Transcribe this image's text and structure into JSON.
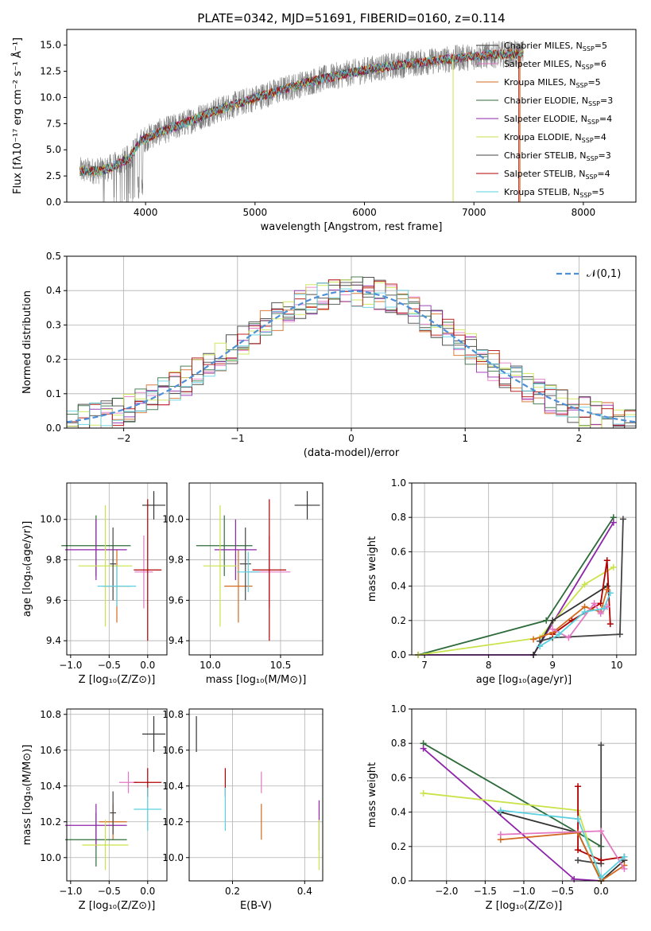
{
  "title": "PLATE=0342, MJD=51691, FIBERID=0160, z=0.114",
  "models": [
    {
      "name": "Chabrier MILES",
      "nssp": "5",
      "color": "#333333"
    },
    {
      "name": "Salpeter MILES",
      "nssp": "6",
      "color": "#e377c2"
    },
    {
      "name": "Kroupa MILES",
      "nssp": "5",
      "color": "#d2691e"
    },
    {
      "name": "Chabrier ELODIE",
      "nssp": "3",
      "color": "#2e6b3a"
    },
    {
      "name": "Salpeter ELODIE",
      "nssp": "4",
      "color": "#8e24aa"
    },
    {
      "name": "Kroupa ELODIE",
      "nssp": "4",
      "color": "#c9e34a"
    },
    {
      "name": "Chabrier STELIB",
      "nssp": "3",
      "color": "#444444"
    },
    {
      "name": "Salpeter STELIB",
      "nssp": "4",
      "color": "#b00000"
    },
    {
      "name": "Kroupa STELIB",
      "nssp": "5",
      "color": "#5ad0e0"
    }
  ],
  "chart_data": [
    {
      "id": "spectrum",
      "type": "line",
      "title": "PLATE=0342, MJD=51691, FIBERID=0160, z=0.114",
      "xlabel": "wavelength [Angstrom, rest frame]",
      "ylabel": "Flux [fλ10⁻¹⁷ erg cm⁻² s⁻¹ Å⁻¹]",
      "xlim": [
        3280,
        8480
      ],
      "ylim": [
        0,
        16.5
      ],
      "xticks": [
        4000,
        5000,
        6000,
        7000,
        8000
      ],
      "yticks": [
        0.0,
        2.5,
        5.0,
        7.5,
        10.0,
        12.5,
        15.0
      ],
      "data_range": [
        3400,
        7450
      ],
      "continuum": [
        [
          3400,
          3.0
        ],
        [
          3600,
          3.0
        ],
        [
          3700,
          3.4
        ],
        [
          3850,
          4.2
        ],
        [
          3950,
          5.8
        ],
        [
          4100,
          6.6
        ],
        [
          4300,
          7.3
        ],
        [
          4600,
          8.6
        ],
        [
          4900,
          9.6
        ],
        [
          5200,
          10.6
        ],
        [
          5500,
          11.5
        ],
        [
          5800,
          12.2
        ],
        [
          6100,
          12.8
        ],
        [
          6400,
          13.2
        ],
        [
          6800,
          13.7
        ],
        [
          7200,
          14.1
        ],
        [
          7450,
          14.2
        ]
      ]
    },
    {
      "id": "residuals",
      "type": "histogram",
      "xlabel": "(data-model)/error",
      "ylabel": "Normed distribution",
      "xlim": [
        -2.5,
        2.5
      ],
      "ylim": [
        0,
        0.5
      ],
      "xticks": [
        -2,
        -1,
        0,
        1,
        2
      ],
      "yticks": [
        0.0,
        0.1,
        0.2,
        0.3,
        0.4,
        0.5
      ],
      "legend": "𝒩(0,1)",
      "bin_width": 0.1
    },
    {
      "id": "age-vs-z",
      "type": "scatter",
      "xlabel": "Z [log₁₀(Z/Z⊙)]",
      "ylabel": "age  [log₁₀(age/yr)]",
      "xlim": [
        -1.05,
        0.25
      ],
      "ylim": [
        9.33,
        10.18
      ],
      "xticks": [
        -1.0,
        -0.5,
        0.0
      ],
      "yticks": [
        9.4,
        9.6,
        9.8,
        10.0
      ],
      "points": [
        {
          "model": 0,
          "x": 0.08,
          "y": 10.07,
          "xerr": 0.15,
          "yerr": 0.07
        },
        {
          "model": 1,
          "x": -0.05,
          "y": 9.74,
          "xerr": 0.12,
          "yerr": 0.18
        },
        {
          "model": 2,
          "x": -0.4,
          "y": 9.67,
          "xerr": 0.18,
          "yerr": 0.18
        },
        {
          "model": 3,
          "x": -0.67,
          "y": 9.87,
          "xerr": 0.45,
          "yerr": 0.15
        },
        {
          "model": 4,
          "x": -0.67,
          "y": 9.85,
          "xerr": 0.4,
          "yerr": 0.15
        },
        {
          "model": 5,
          "x": -0.55,
          "y": 9.77,
          "xerr": 0.35,
          "yerr": 0.3
        },
        {
          "model": 6,
          "x": -0.45,
          "y": 9.78,
          "xerr": 0.04,
          "yerr": 0.18
        },
        {
          "model": 7,
          "x": 0.0,
          "y": 9.75,
          "xerr": 0.18,
          "yerr": 0.35
        },
        {
          "model": 8,
          "x": -0.4,
          "y": 9.67,
          "xerr": 0.25,
          "yerr": 0.1
        }
      ]
    },
    {
      "id": "age-vs-mass",
      "type": "scatter",
      "xlabel": "mass [log₁₀(M/M⊙)]",
      "ylabel": "",
      "xlim": [
        9.85,
        10.8
      ],
      "ylim": [
        9.33,
        10.18
      ],
      "xticks": [
        10.0,
        10.5
      ],
      "yticks": [
        9.4,
        9.6,
        9.8,
        10.0
      ],
      "points": [
        {
          "model": 0,
          "x": 10.69,
          "y": 10.07,
          "xerr": 0.09,
          "yerr": 0.07
        },
        {
          "model": 1,
          "x": 10.42,
          "y": 9.74,
          "xerr": 0.15,
          "yerr": 0.18
        },
        {
          "model": 2,
          "x": 10.2,
          "y": 9.67,
          "xerr": 0.1,
          "yerr": 0.18
        },
        {
          "model": 3,
          "x": 10.1,
          "y": 9.87,
          "xerr": 0.2,
          "yerr": 0.15
        },
        {
          "model": 4,
          "x": 10.18,
          "y": 9.85,
          "xerr": 0.15,
          "yerr": 0.15
        },
        {
          "model": 5,
          "x": 10.07,
          "y": 9.77,
          "xerr": 0.12,
          "yerr": 0.3
        },
        {
          "model": 6,
          "x": 10.25,
          "y": 9.78,
          "xerr": 0.04,
          "yerr": 0.18
        },
        {
          "model": 7,
          "x": 10.42,
          "y": 9.75,
          "xerr": 0.12,
          "yerr": 0.35
        },
        {
          "model": 8,
          "x": 10.27,
          "y": 9.74,
          "xerr": 0.08,
          "yerr": 0.1
        }
      ]
    },
    {
      "id": "weight-vs-age",
      "type": "line",
      "xlabel": "age  [log₁₀(age/yr)]",
      "ylabel": "mass weight",
      "xlim": [
        6.8,
        10.3
      ],
      "ylim": [
        0,
        1.0
      ],
      "xticks": [
        7,
        8,
        9,
        10
      ],
      "yticks": [
        0.0,
        0.2,
        0.4,
        0.6,
        0.8,
        1.0
      ],
      "series": [
        {
          "model": 3,
          "points": [
            [
              6.9,
              0.0
            ],
            [
              8.9,
              0.2
            ],
            [
              9.95,
              0.8
            ]
          ]
        },
        {
          "model": 4,
          "points": [
            [
              6.9,
              0.0
            ],
            [
              8.7,
              0.0
            ],
            [
              9.95,
              0.77
            ]
          ]
        },
        {
          "model": 5,
          "points": [
            [
              6.9,
              0.0
            ],
            [
              8.8,
              0.1
            ],
            [
              9.5,
              0.41
            ],
            [
              9.95,
              0.51
            ]
          ]
        },
        {
          "model": 6,
          "points": [
            [
              8.8,
              0.08
            ],
            [
              9.0,
              0.1
            ],
            [
              10.05,
              0.12
            ],
            [
              10.1,
              0.79
            ]
          ]
        },
        {
          "model": 0,
          "points": [
            [
              8.7,
              0.0
            ],
            [
              9.0,
              0.2
            ],
            [
              9.85,
              0.4
            ]
          ]
        },
        {
          "model": 7,
          "points": [
            [
              9.0,
              0.12
            ],
            [
              9.3,
              0.2
            ],
            [
              9.75,
              0.3
            ],
            [
              9.85,
              0.55
            ],
            [
              9.9,
              0.18
            ]
          ]
        },
        {
          "model": 2,
          "points": [
            [
              8.7,
              0.09
            ],
            [
              9.0,
              0.13
            ],
            [
              9.5,
              0.28
            ],
            [
              9.75,
              0.25
            ],
            [
              9.85,
              0.38
            ]
          ]
        },
        {
          "model": 1,
          "points": [
            [
              9.0,
              0.15
            ],
            [
              9.25,
              0.1
            ],
            [
              9.65,
              0.3
            ],
            [
              9.75,
              0.24
            ],
            [
              9.85,
              0.28
            ]
          ]
        },
        {
          "model": 8,
          "points": [
            [
              8.8,
              0.05
            ],
            [
              9.1,
              0.12
            ],
            [
              9.5,
              0.25
            ],
            [
              9.8,
              0.27
            ],
            [
              9.9,
              0.36
            ]
          ]
        }
      ]
    },
    {
      "id": "mass-vs-z",
      "type": "scatter",
      "xlabel": "Z [log₁₀(Z/Z⊙)]",
      "ylabel": "mass [log₁₀(M/M⊙)]",
      "xlim": [
        -1.05,
        0.25
      ],
      "ylim": [
        9.87,
        10.83
      ],
      "xticks": [
        -1.0,
        -0.5,
        0.0
      ],
      "yticks": [
        10.0,
        10.2,
        10.4,
        10.6,
        10.8
      ],
      "points": [
        {
          "model": 0,
          "x": 0.08,
          "y": 10.69,
          "xerr": 0.15,
          "yerr": 0.1
        },
        {
          "model": 1,
          "x": -0.25,
          "y": 10.42,
          "xerr": 0.12,
          "yerr": 0.06
        },
        {
          "model": 2,
          "x": -0.45,
          "y": 10.2,
          "xerr": 0.18,
          "yerr": 0.1
        },
        {
          "model": 3,
          "x": -0.67,
          "y": 10.1,
          "xerr": 0.4,
          "yerr": 0.15
        },
        {
          "model": 4,
          "x": -0.67,
          "y": 10.18,
          "xerr": 0.4,
          "yerr": 0.12
        },
        {
          "model": 5,
          "x": -0.55,
          "y": 10.07,
          "xerr": 0.3,
          "yerr": 0.14
        },
        {
          "model": 6,
          "x": -0.45,
          "y": 10.25,
          "xerr": 0.04,
          "yerr": 0.12
        },
        {
          "model": 7,
          "x": 0.0,
          "y": 10.42,
          "xerr": 0.18,
          "yerr": 0.08
        },
        {
          "model": 8,
          "x": 0.0,
          "y": 10.27,
          "xerr": 0.18,
          "yerr": 0.12
        }
      ]
    },
    {
      "id": "mass-vs-ebv",
      "type": "scatter",
      "xlabel": "E(B-V)",
      "ylabel": "",
      "xlim": [
        0.08,
        0.45
      ],
      "ylim": [
        9.87,
        10.83
      ],
      "xticks": [
        0.2,
        0.4
      ],
      "yticks": [
        10.0,
        10.2,
        10.4,
        10.6,
        10.8
      ],
      "points": [
        {
          "model": 0,
          "x": 0.1,
          "y": 10.69,
          "xerr": 0,
          "yerr": 0.1
        },
        {
          "model": 1,
          "x": 0.28,
          "y": 10.42,
          "xerr": 0,
          "yerr": 0.06
        },
        {
          "model": 2,
          "x": 0.28,
          "y": 10.2,
          "xerr": 0,
          "yerr": 0.1
        },
        {
          "model": 4,
          "x": 0.44,
          "y": 10.18,
          "xerr": 0,
          "yerr": 0.14
        },
        {
          "model": 5,
          "x": 0.44,
          "y": 10.07,
          "xerr": 0,
          "yerr": 0.14
        },
        {
          "model": 7,
          "x": 0.18,
          "y": 10.42,
          "xerr": 0,
          "yerr": 0.08
        },
        {
          "model": 8,
          "x": 0.18,
          "y": 10.27,
          "xerr": 0,
          "yerr": 0.12
        }
      ]
    },
    {
      "id": "weight-vs-z",
      "type": "line",
      "xlabel": "Z [log₁₀(Z/Z⊙)]",
      "ylabel": "mass weight",
      "xlim": [
        -2.45,
        0.45
      ],
      "ylim": [
        0,
        1.0
      ],
      "xticks": [
        -2.0,
        -1.5,
        -1.0,
        -0.5,
        0.0
      ],
      "yticks": [
        0.0,
        0.2,
        0.4,
        0.6,
        0.8,
        1.0
      ],
      "series": [
        {
          "model": 3,
          "points": [
            [
              -2.3,
              0.8
            ],
            [
              -0.3,
              0.28
            ],
            [
              0.0,
              0.2
            ]
          ]
        },
        {
          "model": 4,
          "points": [
            [
              -2.3,
              0.77
            ],
            [
              -0.35,
              0.01
            ],
            [
              0.0,
              0.0
            ]
          ]
        },
        {
          "model": 5,
          "points": [
            [
              -2.3,
              0.51
            ],
            [
              -0.3,
              0.41
            ],
            [
              0.0,
              0.0
            ]
          ]
        },
        {
          "model": 6,
          "points": [
            [
              -0.3,
              0.12
            ],
            [
              0.0,
              0.1
            ],
            [
              0.0,
              0.79
            ]
          ]
        },
        {
          "model": 0,
          "points": [
            [
              -1.3,
              0.4
            ],
            [
              -0.3,
              0.28
            ],
            [
              0.0,
              0.0
            ],
            [
              0.3,
              0.12
            ]
          ]
        },
        {
          "model": 7,
          "points": [
            [
              -0.3,
              0.55
            ],
            [
              -0.3,
              0.18
            ],
            [
              0.0,
              0.12
            ],
            [
              0.3,
              0.14
            ]
          ]
        },
        {
          "model": 2,
          "points": [
            [
              -1.3,
              0.24
            ],
            [
              -0.3,
              0.28
            ],
            [
              0.0,
              0.0
            ],
            [
              0.3,
              0.09
            ]
          ]
        },
        {
          "model": 1,
          "points": [
            [
              -1.3,
              0.27
            ],
            [
              0.0,
              0.29
            ],
            [
              0.3,
              0.07
            ]
          ]
        },
        {
          "model": 8,
          "points": [
            [
              -1.3,
              0.41
            ],
            [
              -0.3,
              0.36
            ],
            [
              0.0,
              0.02
            ],
            [
              0.3,
              0.14
            ]
          ]
        }
      ]
    }
  ]
}
